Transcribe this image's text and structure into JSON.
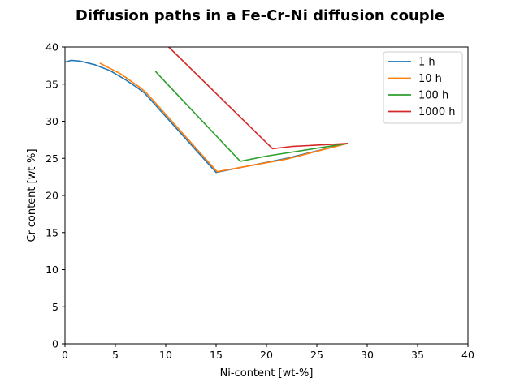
{
  "chart_data": {
    "type": "line",
    "title": "Diffusion paths in a Fe-Cr-Ni diffusion couple",
    "xlabel": "Ni-content [wt-%]",
    "ylabel": "Cr-content [wt-%]",
    "xlim": [
      0,
      40
    ],
    "ylim": [
      0,
      40
    ],
    "xticks": [
      "0",
      "5",
      "10",
      "15",
      "20",
      "25",
      "30",
      "35",
      "40"
    ],
    "yticks": [
      "0",
      "5",
      "10",
      "15",
      "20",
      "25",
      "30",
      "35",
      "40"
    ],
    "grid": false,
    "legend_position": "top-right",
    "series": [
      {
        "name": "1 h",
        "color": "#1f77b4",
        "points": [
          [
            0.1,
            38.0
          ],
          [
            0.6,
            38.2
          ],
          [
            1.5,
            38.1
          ],
          [
            3.0,
            37.6
          ],
          [
            4.5,
            36.8
          ],
          [
            6.0,
            35.6
          ],
          [
            7.2,
            34.5
          ],
          [
            7.9,
            33.8
          ],
          [
            15.0,
            23.1
          ],
          [
            22.0,
            25.0
          ],
          [
            28.0,
            27.0
          ]
        ]
      },
      {
        "name": "10 h",
        "color": "#ff7f0e",
        "points": [
          [
            3.5,
            37.8
          ],
          [
            5.5,
            36.4
          ],
          [
            7.5,
            34.5
          ],
          [
            8.1,
            33.8
          ],
          [
            15.1,
            23.2
          ],
          [
            22.0,
            24.9
          ],
          [
            28.0,
            27.0
          ]
        ]
      },
      {
        "name": "100 h",
        "color": "#2ca02c",
        "points": [
          [
            9.0,
            36.7
          ],
          [
            9.4,
            36.1
          ],
          [
            17.4,
            24.6
          ],
          [
            20.0,
            25.3
          ],
          [
            28.0,
            27.0
          ]
        ]
      },
      {
        "name": "1000 h",
        "color": "#d62728",
        "points": [
          [
            10.3,
            40.0
          ],
          [
            20.6,
            26.3
          ],
          [
            22.5,
            26.6
          ],
          [
            28.0,
            27.0
          ]
        ]
      }
    ]
  }
}
